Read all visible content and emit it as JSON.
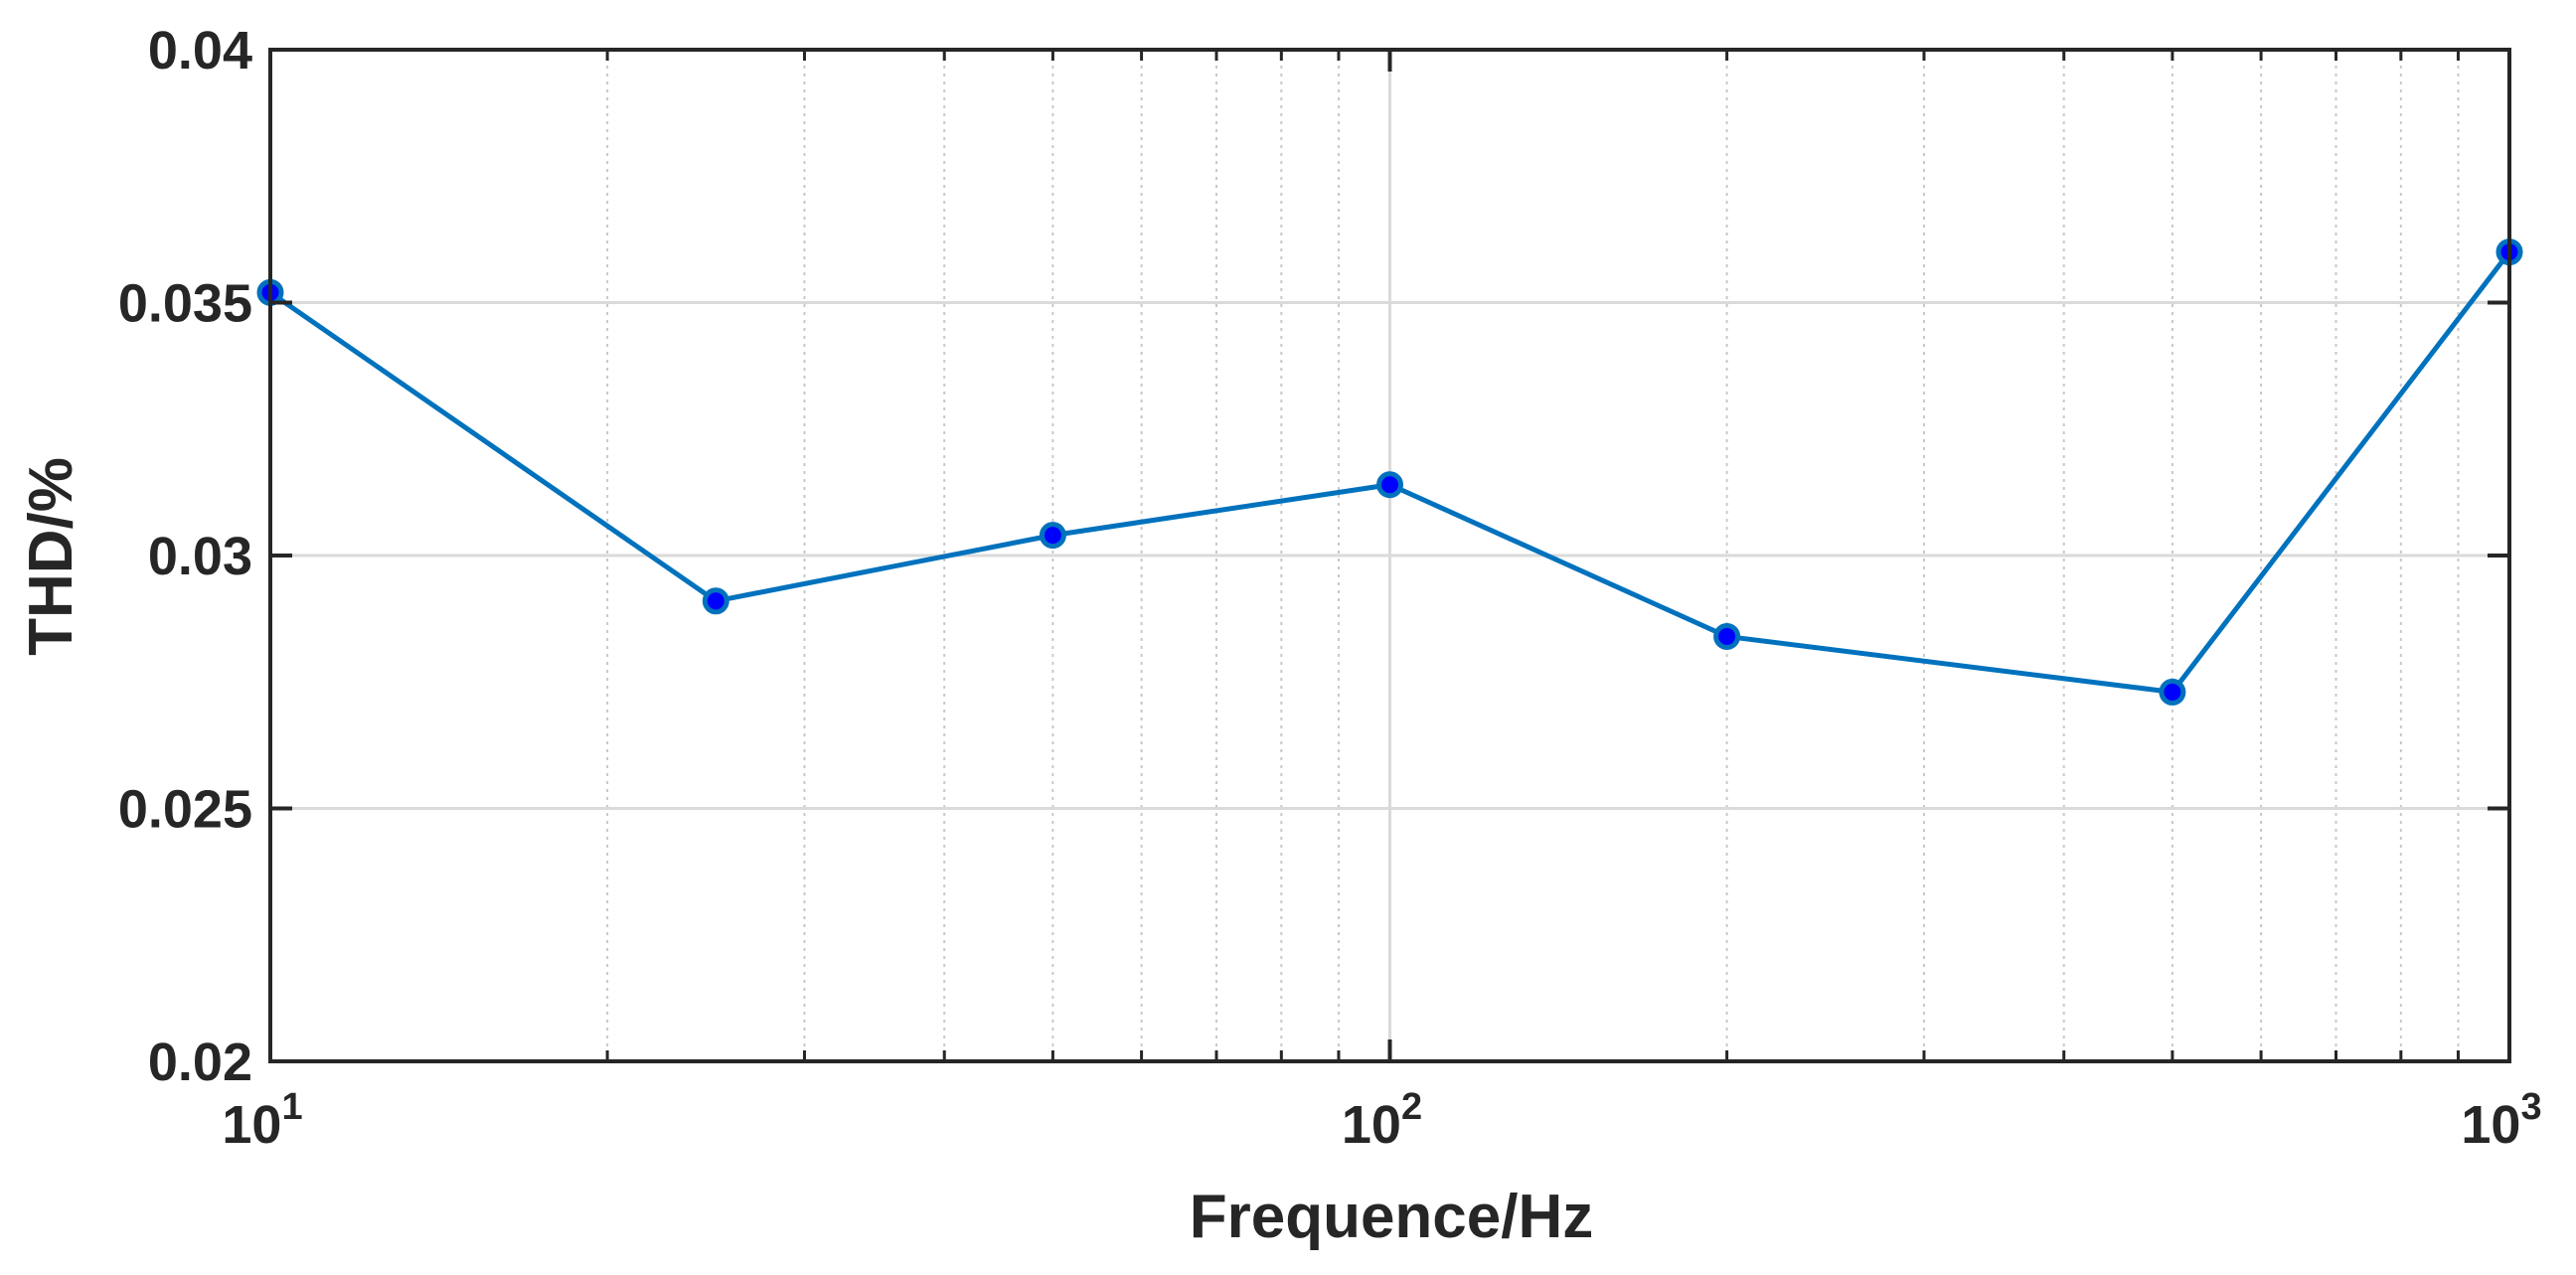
{
  "chart_data": {
    "type": "line",
    "xlabel": "Frequence/Hz",
    "ylabel": "THD/%",
    "xscale": "log",
    "xlim": [
      10,
      1000
    ],
    "ylim": [
      0.02,
      0.04
    ],
    "x_ticks": [
      10,
      100,
      1000
    ],
    "x_tick_labels": [
      {
        "base": "10",
        "exp": "1"
      },
      {
        "base": "10",
        "exp": "2"
      },
      {
        "base": "10",
        "exp": "3"
      }
    ],
    "y_ticks": [
      0.02,
      0.025,
      0.03,
      0.035,
      0.04
    ],
    "y_tick_labels": [
      "0.02",
      "0.025",
      "0.03",
      "0.035",
      "0.04"
    ],
    "grid": true,
    "minor_grid_x": true,
    "series": [
      {
        "color": "#0072BD",
        "marker_fill": "#0000FF",
        "x": [
          10,
          25,
          50,
          100,
          200,
          500,
          1000
        ],
        "y": [
          0.0352,
          0.0291,
          0.0304,
          0.0314,
          0.0284,
          0.0273,
          0.036
        ]
      }
    ]
  }
}
